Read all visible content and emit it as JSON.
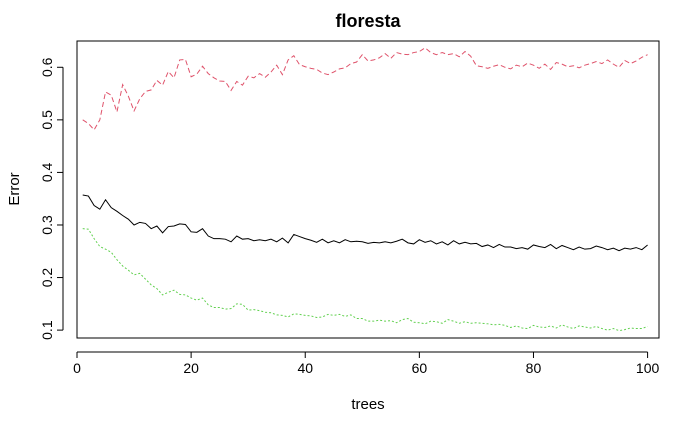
{
  "chart_data": {
    "type": "line",
    "title": "floresta",
    "xlabel": "trees",
    "ylabel": "Error",
    "xlim": [
      0,
      102
    ],
    "ylim": [
      0.085,
      0.65
    ],
    "xticks": [
      0,
      20,
      40,
      60,
      80,
      100
    ],
    "yticks": [
      0.1,
      0.2,
      0.3,
      0.4,
      0.5,
      0.6
    ],
    "grid": false,
    "legend": "none",
    "series": [
      {
        "color": "#000000",
        "dash": "solid",
        "x": [
          1,
          2,
          3,
          4,
          5,
          6,
          7,
          8,
          9,
          10,
          11,
          12,
          13,
          14,
          15,
          16,
          17,
          18,
          19,
          20,
          21,
          22,
          23,
          24,
          25,
          26,
          27,
          28,
          29,
          30,
          31,
          32,
          33,
          34,
          35,
          36,
          37,
          38,
          39,
          40,
          41,
          42,
          43,
          44,
          45,
          46,
          47,
          48,
          49,
          50,
          51,
          52,
          53,
          54,
          55,
          56,
          57,
          58,
          59,
          60,
          61,
          62,
          63,
          64,
          65,
          66,
          67,
          68,
          69,
          70,
          71,
          72,
          73,
          74,
          75,
          76,
          77,
          78,
          79,
          80,
          81,
          82,
          83,
          84,
          85,
          86,
          87,
          88,
          89,
          90,
          91,
          92,
          93,
          94,
          95,
          96,
          97,
          98,
          99,
          100
        ],
        "y": [
          0.357,
          0.355,
          0.337,
          0.33,
          0.348,
          0.333,
          0.326,
          0.318,
          0.311,
          0.3,
          0.305,
          0.303,
          0.293,
          0.298,
          0.285,
          0.297,
          0.298,
          0.302,
          0.301,
          0.287,
          0.286,
          0.293,
          0.279,
          0.274,
          0.274,
          0.273,
          0.268,
          0.279,
          0.273,
          0.274,
          0.27,
          0.272,
          0.27,
          0.273,
          0.268,
          0.275,
          0.266,
          0.282,
          0.278,
          0.274,
          0.271,
          0.267,
          0.273,
          0.266,
          0.27,
          0.266,
          0.272,
          0.268,
          0.269,
          0.268,
          0.265,
          0.267,
          0.266,
          0.268,
          0.266,
          0.269,
          0.273,
          0.266,
          0.264,
          0.272,
          0.267,
          0.27,
          0.264,
          0.268,
          0.262,
          0.27,
          0.264,
          0.267,
          0.264,
          0.265,
          0.259,
          0.262,
          0.257,
          0.263,
          0.258,
          0.258,
          0.255,
          0.257,
          0.254,
          0.262,
          0.259,
          0.257,
          0.263,
          0.255,
          0.261,
          0.257,
          0.253,
          0.258,
          0.254,
          0.255,
          0.26,
          0.257,
          0.253,
          0.256,
          0.251,
          0.256,
          0.254,
          0.257,
          0.253,
          0.262
        ]
      },
      {
        "color": "#DF536B",
        "dash": "dashed",
        "x": [
          1,
          2,
          3,
          4,
          5,
          6,
          7,
          8,
          9,
          10,
          11,
          12,
          13,
          14,
          15,
          16,
          17,
          18,
          19,
          20,
          21,
          22,
          23,
          24,
          25,
          26,
          27,
          28,
          29,
          30,
          31,
          32,
          33,
          34,
          35,
          36,
          37,
          38,
          39,
          40,
          41,
          42,
          43,
          44,
          45,
          46,
          47,
          48,
          49,
          50,
          51,
          52,
          53,
          54,
          55,
          56,
          57,
          58,
          59,
          60,
          61,
          62,
          63,
          64,
          65,
          66,
          67,
          68,
          69,
          70,
          71,
          72,
          73,
          74,
          75,
          76,
          77,
          78,
          79,
          80,
          81,
          82,
          83,
          84,
          85,
          86,
          87,
          88,
          89,
          90,
          91,
          92,
          93,
          94,
          95,
          96,
          97,
          98,
          99,
          100
        ],
        "y": [
          0.5,
          0.493,
          0.481,
          0.5,
          0.553,
          0.547,
          0.515,
          0.567,
          0.545,
          0.517,
          0.54,
          0.554,
          0.557,
          0.575,
          0.566,
          0.592,
          0.58,
          0.614,
          0.615,
          0.582,
          0.587,
          0.602,
          0.588,
          0.58,
          0.574,
          0.573,
          0.556,
          0.573,
          0.566,
          0.583,
          0.58,
          0.588,
          0.581,
          0.591,
          0.604,
          0.586,
          0.614,
          0.622,
          0.605,
          0.601,
          0.598,
          0.596,
          0.589,
          0.586,
          0.591,
          0.597,
          0.599,
          0.607,
          0.61,
          0.624,
          0.612,
          0.614,
          0.618,
          0.626,
          0.617,
          0.628,
          0.625,
          0.624,
          0.628,
          0.63,
          0.637,
          0.628,
          0.624,
          0.628,
          0.624,
          0.626,
          0.62,
          0.63,
          0.621,
          0.603,
          0.601,
          0.598,
          0.602,
          0.605,
          0.6,
          0.597,
          0.604,
          0.601,
          0.608,
          0.604,
          0.598,
          0.606,
          0.596,
          0.609,
          0.606,
          0.601,
          0.603,
          0.599,
          0.604,
          0.607,
          0.611,
          0.607,
          0.614,
          0.606,
          0.6,
          0.613,
          0.607,
          0.612,
          0.619,
          0.624
        ]
      },
      {
        "color": "#61D04F",
        "dash": "dotted",
        "x": [
          1,
          2,
          3,
          4,
          5,
          6,
          7,
          8,
          9,
          10,
          11,
          12,
          13,
          14,
          15,
          16,
          17,
          18,
          19,
          20,
          21,
          22,
          23,
          24,
          25,
          26,
          27,
          28,
          29,
          30,
          31,
          32,
          33,
          34,
          35,
          36,
          37,
          38,
          39,
          40,
          41,
          42,
          43,
          44,
          45,
          46,
          47,
          48,
          49,
          50,
          51,
          52,
          53,
          54,
          55,
          56,
          57,
          58,
          59,
          60,
          61,
          62,
          63,
          64,
          65,
          66,
          67,
          68,
          69,
          70,
          71,
          72,
          73,
          74,
          75,
          76,
          77,
          78,
          79,
          80,
          81,
          82,
          83,
          84,
          85,
          86,
          87,
          88,
          89,
          90,
          91,
          92,
          93,
          94,
          95,
          96,
          97,
          98,
          99,
          100
        ],
        "y": [
          0.293,
          0.292,
          0.274,
          0.259,
          0.254,
          0.248,
          0.234,
          0.222,
          0.214,
          0.205,
          0.208,
          0.197,
          0.186,
          0.179,
          0.167,
          0.172,
          0.176,
          0.168,
          0.167,
          0.161,
          0.157,
          0.161,
          0.148,
          0.143,
          0.143,
          0.14,
          0.141,
          0.15,
          0.149,
          0.138,
          0.139,
          0.137,
          0.134,
          0.133,
          0.129,
          0.128,
          0.125,
          0.131,
          0.13,
          0.128,
          0.127,
          0.124,
          0.125,
          0.13,
          0.128,
          0.13,
          0.126,
          0.129,
          0.122,
          0.122,
          0.117,
          0.117,
          0.119,
          0.117,
          0.118,
          0.114,
          0.12,
          0.122,
          0.115,
          0.114,
          0.112,
          0.117,
          0.116,
          0.113,
          0.12,
          0.117,
          0.113,
          0.116,
          0.113,
          0.114,
          0.113,
          0.112,
          0.11,
          0.111,
          0.109,
          0.105,
          0.108,
          0.104,
          0.103,
          0.109,
          0.106,
          0.105,
          0.108,
          0.104,
          0.11,
          0.106,
          0.103,
          0.108,
          0.106,
          0.104,
          0.107,
          0.103,
          0.1,
          0.103,
          0.099,
          0.101,
          0.104,
          0.103,
          0.103,
          0.107
        ]
      }
    ]
  }
}
